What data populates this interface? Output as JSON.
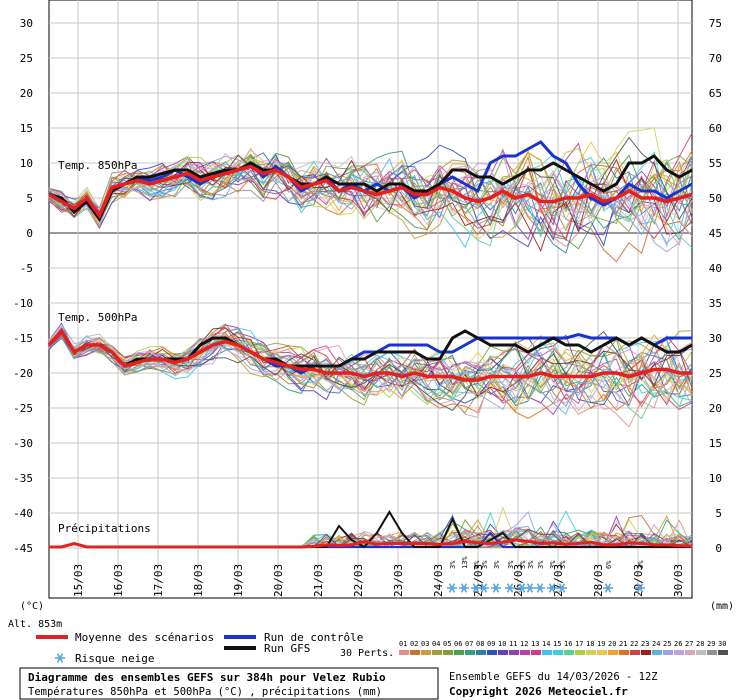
{
  "chart_data": {
    "type": "line",
    "title": "Diagramme des ensembles GEFS sur 384h pour Velez Rubio",
    "subtitle": "Températures 850hPa et 500hPa (°C) , précipitations (mm)",
    "run_info": "Ensemble GEFS du 14/03/2026 - 12Z",
    "copyright": "Copyright 2026 Meteociel.fr",
    "altitude": "Alt. 853m",
    "left_unit": "(°C)",
    "right_unit": "(mm)",
    "left_ylim": [
      -45,
      30
    ],
    "left_ticks": [
      "30",
      "25",
      "20",
      "15",
      "10",
      "5",
      "0",
      "-5",
      "-10",
      "-15",
      "-20",
      "-25",
      "-30",
      "-35",
      "-40",
      "-45"
    ],
    "right_ticks": [
      "75",
      "70",
      "65",
      "60",
      "55",
      "50",
      "45",
      "40",
      "35",
      "30",
      "25",
      "20",
      "15",
      "10",
      "5",
      "0"
    ],
    "x_dates": [
      "15/03",
      "16/03",
      "17/03",
      "18/03",
      "19/03",
      "20/03",
      "21/03",
      "22/03",
      "23/03",
      "24/03",
      "25/03",
      "26/03",
      "27/03",
      "28/03",
      "29/03",
      "30/03"
    ],
    "section_labels": {
      "t850": "Temp. 850hPa",
      "t500": "Temp. 500hPa",
      "precip": "Précipitations"
    },
    "series": [
      {
        "name": "Moyenne des scénarios",
        "color": "#e52020",
        "t850": [
          5.5,
          4.5,
          3.5,
          5,
          2.5,
          6.5,
          7,
          7.5,
          7,
          7.5,
          8,
          8.5,
          7.5,
          8,
          8.5,
          9,
          9.5,
          8.5,
          9,
          8,
          6.5,
          7,
          7.5,
          6,
          6.5,
          6,
          5.5,
          6,
          6.5,
          5.5,
          5.5,
          6.5,
          6,
          5,
          4.5,
          5,
          6,
          5,
          5.5,
          4.5,
          4.5,
          5,
          5,
          5.5,
          4.5,
          5,
          6,
          5,
          5,
          4.5,
          5,
          5.5
        ],
        "t500": [
          -16,
          -14,
          -17,
          -16,
          -16,
          -17,
          -19,
          -18.5,
          -18,
          -18,
          -18.5,
          -18,
          -17,
          -16,
          -15.5,
          -16,
          -17,
          -18,
          -18.5,
          -19,
          -19.5,
          -19.5,
          -20,
          -20,
          -20,
          -20.5,
          -20,
          -20,
          -20.5,
          -20,
          -20.5,
          -20.5,
          -20.5,
          -21,
          -21,
          -20.5,
          -20.5,
          -20.5,
          -20.5,
          -20,
          -20.5,
          -20.5,
          -20.5,
          -20.5,
          -20,
          -20,
          -20.5,
          -20,
          -19.5,
          -19.5,
          -20,
          -20
        ],
        "precip": [
          0,
          0,
          0.5,
          0,
          0,
          0,
          0,
          0,
          0,
          0,
          0,
          0,
          0,
          0,
          0,
          0,
          0,
          0,
          0,
          0,
          0,
          0.1,
          0.3,
          0.2,
          0.3,
          0.8,
          0.4,
          0.5,
          0.5,
          0.5,
          0.5,
          0.4,
          0.5,
          0.8,
          0.6,
          0.5,
          0.7,
          1,
          0.8,
          0.5,
          0.6,
          0.4,
          0.5,
          0.7,
          0.3,
          0.3,
          0.6,
          0.5,
          0.3,
          0.3,
          0.2,
          0.1
        ]
      },
      {
        "name": "Run de contrôle",
        "color": "#1a33cc",
        "t850": [
          5.5,
          5,
          3,
          4.5,
          2,
          6,
          7,
          8,
          7.5,
          8,
          9,
          8,
          7,
          8,
          9,
          9,
          10,
          8,
          9.5,
          8,
          6,
          7,
          8,
          6,
          7,
          6,
          7,
          6,
          6.5,
          5,
          6,
          7,
          8,
          7,
          6,
          10,
          11,
          11,
          12,
          13,
          11,
          10,
          7,
          5,
          4,
          5,
          7,
          6,
          6,
          5,
          6,
          7
        ],
        "t500": [
          -16,
          -14,
          -17,
          -16,
          -16,
          -17,
          -19,
          -18,
          -18,
          -18,
          -18,
          -18,
          -16,
          -15,
          -15,
          -16,
          -17,
          -18,
          -19,
          -19,
          -20,
          -19,
          -19,
          -19,
          -18,
          -17,
          -17,
          -16,
          -16,
          -16,
          -16,
          -17,
          -17,
          -16,
          -15,
          -15,
          -15,
          -15,
          -15,
          -15,
          -15,
          -15,
          -14.5,
          -15,
          -15,
          -15,
          -16,
          -15,
          -16,
          -15,
          -15,
          -15
        ],
        "precip": [
          0,
          0,
          0.5,
          0,
          0,
          0,
          0,
          0,
          0,
          0,
          0,
          0,
          0,
          0,
          0,
          0,
          0,
          0,
          0,
          0,
          0,
          0,
          0,
          0,
          0,
          0,
          0,
          0,
          0,
          0,
          0,
          0,
          0,
          0,
          0,
          2,
          0,
          0,
          0,
          0,
          0,
          0,
          0,
          0,
          0,
          0,
          0,
          0,
          0,
          0,
          0,
          0
        ]
      },
      {
        "name": "Run GFS",
        "color": "#111111",
        "t850": [
          5.5,
          5,
          3,
          4.5,
          2,
          6,
          7,
          8,
          8,
          8.5,
          9,
          9,
          8,
          8.5,
          9,
          9,
          10,
          9,
          9,
          8,
          7,
          7,
          8,
          7,
          7,
          7,
          6,
          7,
          7,
          6,
          6,
          7,
          9,
          9,
          8,
          8,
          7,
          8,
          9,
          9,
          10,
          9,
          8,
          7,
          6,
          7,
          10,
          10,
          11,
          9,
          8,
          9
        ],
        "t500": [
          -16,
          -14,
          -17,
          -16,
          -16,
          -17,
          -19,
          -18,
          -18,
          -18,
          -18,
          -18,
          -16,
          -15,
          -15,
          -16,
          -17,
          -18,
          -18,
          -19,
          -19,
          -19,
          -19,
          -19,
          -18,
          -18,
          -17,
          -17,
          -17,
          -17,
          -18,
          -18,
          -15,
          -14,
          -15,
          -16,
          -16,
          -16,
          -17,
          -16,
          -15,
          -16,
          -16,
          -17,
          -16,
          -15,
          -16,
          -15,
          -16,
          -17,
          -17,
          -16
        ],
        "precip": [
          0,
          0,
          0.5,
          0,
          0,
          0,
          0,
          0,
          0,
          0,
          0,
          0,
          0,
          0,
          0,
          0,
          0,
          0,
          0,
          0,
          0,
          0,
          0,
          3,
          1,
          0,
          2,
          5,
          2,
          0,
          0,
          0,
          4,
          0,
          0,
          1,
          2,
          0,
          0,
          0,
          0,
          0,
          0,
          0,
          0,
          0,
          0,
          0,
          0,
          0,
          0,
          0
        ]
      }
    ],
    "perturbation_count_label": "30 Perts.",
    "perturbation_numbers": [
      "01",
      "02",
      "03",
      "04",
      "05",
      "06",
      "07",
      "08",
      "09",
      "10",
      "11",
      "12",
      "13",
      "14",
      "15",
      "16",
      "17",
      "18",
      "19",
      "20",
      "21",
      "22",
      "23",
      "24",
      "25",
      "26",
      "27",
      "28",
      "29",
      "30"
    ],
    "perturbation_colors": [
      "#e28f8f",
      "#c87137",
      "#c8a037",
      "#a0a030",
      "#80a040",
      "#4fa04f",
      "#30a080",
      "#3080a0",
      "#3050c0",
      "#6040c0",
      "#9040b0",
      "#c040a0",
      "#d0408a",
      "#40c0ff",
      "#40d0d0",
      "#60d090",
      "#b0d040",
      "#d0d060",
      "#e8c850",
      "#f0a030",
      "#e07020",
      "#d04040",
      "#9a2020",
      "#60b0e0",
      "#a0a0e0",
      "#c0a0e0",
      "#e0a0c0",
      "#c0c0c0",
      "#909090",
      "#505050"
    ],
    "snow_risk": [
      {
        "date_index": 10.1,
        "label": "3%"
      },
      {
        "date_index": 10.4,
        "label": "13%"
      },
      {
        "date_index": 10.7,
        "label": "6%"
      },
      {
        "date_index": 10.9,
        "label": "3%"
      },
      {
        "date_index": 11.2,
        "label": "3%"
      },
      {
        "date_index": 11.55,
        "label": "3%"
      },
      {
        "date_index": 11.85,
        "label": "3%"
      },
      {
        "date_index": 12.05,
        "label": "3%"
      },
      {
        "date_index": 12.3,
        "label": "3%"
      },
      {
        "date_index": 12.6,
        "label": "3%"
      },
      {
        "date_index": 12.85,
        "label": "3%"
      },
      {
        "date_index": 14.0,
        "label": "6%"
      },
      {
        "date_index": 14.8,
        "label": "3%"
      }
    ],
    "legend": {
      "mean_label": "Moyenne des scénarios",
      "control_label": "Run de contrôle",
      "gfs_label": "Run GFS",
      "snow_label": "Risque neige"
    }
  }
}
